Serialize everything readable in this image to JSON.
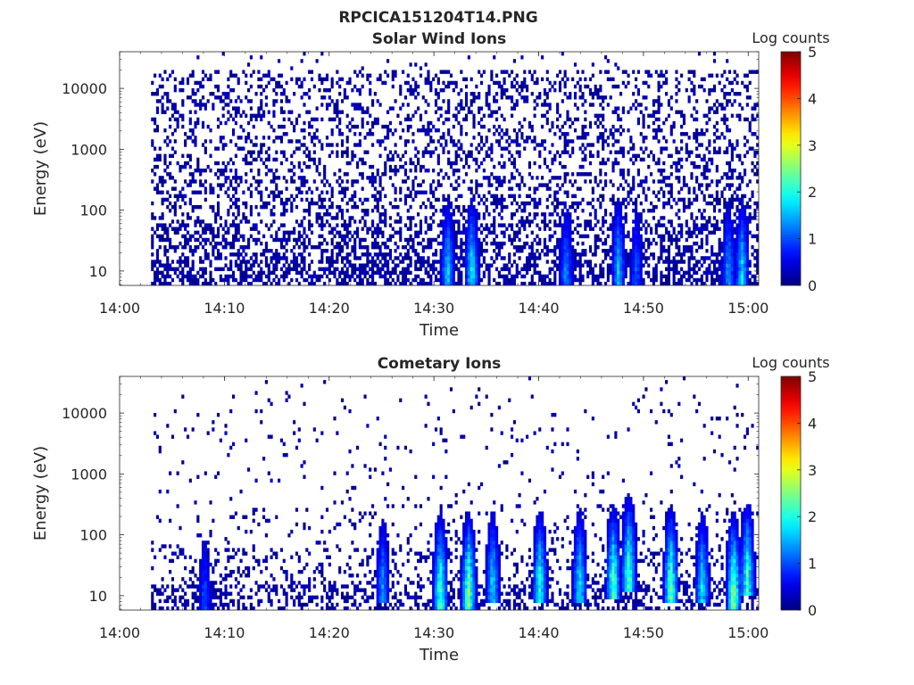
{
  "figure": {
    "filename": "RPCICA151204T14.PNG"
  },
  "chart_data": [
    {
      "type": "heatmap",
      "title": "Solar Wind Ions",
      "xlabel": "Time",
      "ylabel": "Energy (eV)",
      "x_ticks": [
        "14:00",
        "14:10",
        "14:20",
        "14:30",
        "14:40",
        "14:50",
        "15:00"
      ],
      "xlim": [
        "14:00",
        "15:01"
      ],
      "data_start": "14:03",
      "yscale": "log",
      "ylim": [
        5.8,
        40000
      ],
      "y_ticks": [
        10,
        100,
        1000,
        10000
      ],
      "y_tick_labels": [
        "10",
        "100",
        "1000",
        "10000"
      ],
      "colorbar": {
        "label": "Log counts",
        "range": [
          0,
          5
        ],
        "ticks": [
          "0",
          "1",
          "2",
          "3",
          "4",
          "5"
        ],
        "colormap": "jet"
      },
      "bursts": [
        {
          "time": "14:31.2",
          "peak_energy_eV": 12,
          "peak_log_counts": 2.0
        },
        {
          "time": "14:33.5",
          "peak_energy_eV": 12,
          "peak_log_counts": 2.2
        },
        {
          "time": "14:42.5",
          "peak_energy_eV": 12,
          "peak_log_counts": 1.6
        },
        {
          "time": "14:47.5",
          "peak_energy_eV": 14,
          "peak_log_counts": 1.8
        },
        {
          "time": "14:49.2",
          "peak_energy_eV": 12,
          "peak_log_counts": 1.3
        },
        {
          "time": "14:58.0",
          "peak_energy_eV": 12,
          "peak_log_counts": 1.7
        },
        {
          "time": "14:59.3",
          "peak_energy_eV": 12,
          "peak_log_counts": 2.0
        }
      ]
    },
    {
      "type": "heatmap",
      "title": "Cometary Ions",
      "xlabel": "Time",
      "ylabel": "Energy (eV)",
      "x_ticks": [
        "14:00",
        "14:10",
        "14:20",
        "14:30",
        "14:40",
        "14:50",
        "15:00"
      ],
      "xlim": [
        "14:00",
        "15:01"
      ],
      "data_start": "14:03",
      "yscale": "log",
      "ylim": [
        5.8,
        40000
      ],
      "y_ticks": [
        10,
        100,
        1000,
        10000
      ],
      "y_tick_labels": [
        "10",
        "100",
        "1000",
        "10000"
      ],
      "colorbar": {
        "label": "Log counts",
        "range": [
          0,
          5
        ],
        "ticks": [
          "0",
          "1",
          "2",
          "3",
          "4",
          "5"
        ],
        "colormap": "jet"
      },
      "bursts": [
        {
          "time": "14:08.0",
          "peak_energy_eV": 12,
          "peak_log_counts": 1.2
        },
        {
          "time": "14:25.0",
          "peak_energy_eV": 18,
          "peak_log_counts": 1.6
        },
        {
          "time": "14:30.5",
          "peak_energy_eV": 15,
          "peak_log_counts": 2.7
        },
        {
          "time": "14:33.2",
          "peak_energy_eV": 15,
          "peak_log_counts": 3.0
        },
        {
          "time": "14:35.5",
          "peak_energy_eV": 20,
          "peak_log_counts": 2.0
        },
        {
          "time": "14:40.0",
          "peak_energy_eV": 18,
          "peak_log_counts": 2.5
        },
        {
          "time": "14:43.8",
          "peak_energy_eV": 20,
          "peak_log_counts": 2.2
        },
        {
          "time": "14:47.0",
          "peak_energy_eV": 22,
          "peak_log_counts": 2.7
        },
        {
          "time": "14:48.5",
          "peak_energy_eV": 30,
          "peak_log_counts": 2.8
        },
        {
          "time": "14:52.5",
          "peak_energy_eV": 18,
          "peak_log_counts": 2.9
        },
        {
          "time": "14:55.5",
          "peak_energy_eV": 18,
          "peak_log_counts": 2.2
        },
        {
          "time": "14:58.5",
          "peak_energy_eV": 15,
          "peak_log_counts": 3.0
        },
        {
          "time": "14:59.8",
          "peak_energy_eV": 25,
          "peak_log_counts": 2.6
        }
      ]
    }
  ]
}
